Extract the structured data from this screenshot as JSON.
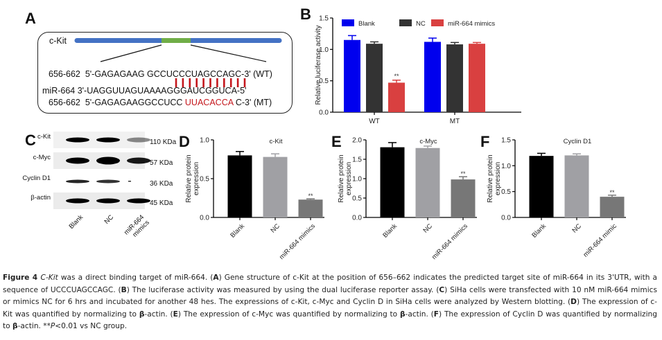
{
  "panels": {
    "A": {
      "letter": "A",
      "gene_label": "c-Kit",
      "wt_line": {
        "pos": "656-662",
        "seq_prefix": "5'-GAGAGAAG GCCUCCCUAGCCAGC-3' (WT)"
      },
      "mir_line": "miR-664 3'-UAGGUUAGUAAAAGGGAUCGGUCA-5'",
      "mt_line": {
        "pos": "656-662",
        "seq_prefix": "5'-GAGAGAAGGCCUCC ",
        "seq_mut": "UUACACCA",
        "seq_suffix": " C-3' (MT)"
      },
      "pairing_bars": 11,
      "colors": {
        "gene_bar": "#4472c4",
        "target_region": "#70ad47",
        "pairing": "#c4161c"
      }
    },
    "B": {
      "letter": "B"
    },
    "C": {
      "letter": "C",
      "rows": [
        {
          "label": "c-Kit",
          "size": "110 KDa"
        },
        {
          "label": "c-Myc",
          "size": "57 KDa"
        },
        {
          "label": "Cyclin D1",
          "size": "36 KDa"
        },
        {
          "label": "β-actin",
          "size": "45 KDa"
        }
      ],
      "lanes": [
        "Blank",
        "NC",
        "miR-664\nmimics"
      ]
    },
    "D": {
      "letter": "D"
    },
    "E": {
      "letter": "E"
    },
    "F": {
      "letter": "F"
    }
  },
  "chart_data": [
    {
      "id": "B",
      "type": "bar",
      "title": "",
      "xlabel": "",
      "ylabel": "Relative luciferase activity",
      "categories": [
        "WT",
        "MT"
      ],
      "ylim": [
        0,
        1.5
      ],
      "yticks": [
        "0.0",
        "0.5",
        "1.0",
        "1.5"
      ],
      "legend": "top",
      "series": [
        {
          "name": "Blank",
          "color": "#0000ee",
          "values": [
            1.15,
            1.12
          ],
          "errors": [
            0.07,
            0.06
          ]
        },
        {
          "name": "NC",
          "color": "#333333",
          "values": [
            1.09,
            1.08
          ],
          "errors": [
            0.03,
            0.03
          ]
        },
        {
          "name": "miR-664 mimics",
          "color": "#d94040",
          "values": [
            0.47,
            1.09
          ],
          "errors": [
            0.04,
            0.02
          ]
        }
      ],
      "annotations": [
        {
          "category": "WT",
          "series": "miR-664 mimics",
          "text": "**"
        }
      ]
    },
    {
      "id": "D",
      "type": "bar",
      "title": "c-Kit",
      "ylabel": "Relative protein\nexpression",
      "categories": [
        "Blank",
        "NC",
        "miR-664 mimics"
      ],
      "values": [
        0.8,
        0.78,
        0.23
      ],
      "errors": [
        0.05,
        0.04,
        0.01
      ],
      "colors": [
        "#000000",
        "#a0a0a4",
        "#777777"
      ],
      "ylim": [
        0,
        1.0
      ],
      "yticks": [
        "0.0",
        "0.5",
        "1.0"
      ],
      "annotations": [
        {
          "category": "miR-664 mimics",
          "text": "**"
        }
      ]
    },
    {
      "id": "E",
      "type": "bar",
      "title": "c-Myc",
      "ylabel": "Relative protein\nexpression",
      "categories": [
        "Blank",
        "NC",
        "miR-664 mimics"
      ],
      "values": [
        1.81,
        1.79,
        0.98
      ],
      "errors": [
        0.12,
        0.05,
        0.07
      ],
      "colors": [
        "#000000",
        "#a0a0a4",
        "#777777"
      ],
      "ylim": [
        0,
        2.0
      ],
      "yticks": [
        "0.0",
        "0.5",
        "1.0",
        "1.5",
        "2.0"
      ],
      "annotations": [
        {
          "category": "miR-664 mimics",
          "text": "**"
        }
      ]
    },
    {
      "id": "F",
      "type": "bar",
      "title": "Cyclin D1",
      "ylabel": "Relative protein\nexpression",
      "categories": [
        "Blank",
        "NC",
        "miR-664 mimic"
      ],
      "values": [
        1.19,
        1.2,
        0.4
      ],
      "errors": [
        0.05,
        0.03,
        0.03
      ],
      "colors": [
        "#000000",
        "#a0a0a4",
        "#777777"
      ],
      "ylim": [
        0,
        1.5
      ],
      "yticks": [
        "0.0",
        "0.5",
        "1.0",
        "1.5"
      ],
      "annotations": [
        {
          "category": "miR-664 mimic",
          "text": "**"
        }
      ]
    }
  ],
  "caption": {
    "figure_label": "Figure 4",
    "italic_gene": "C-Kit",
    "lead": " was a direct binding target of miR-664. (",
    "parts": [
      {
        "letter": "A",
        "text": ") Gene structure of c-Kit at the position of 656–662 indicates the predicted target site of miR-664 in its 3'UTR, with a sequence of UCCCUAGCCAGC. ("
      },
      {
        "letter": "B",
        "text": ") The luciferase activity was measured by using the dual luciferase reporter assay. ("
      },
      {
        "letter": "C",
        "text": ") SiHa cells were transfected with 10 nM miR-664 mimics or mimics NC for 6 hrs and incubated for another 48 hes. The expressions of c-Kit, c-Myc and Cyclin D in SiHa cells were analyzed by Western blotting. ("
      },
      {
        "letter": "D",
        "text": ") The expression of c-Kit was quantified by normalizing to "
      },
      {
        "beta": "β",
        "text": "-actin. ("
      },
      {
        "letter": "E",
        "text": ") The expression of c-Myc was quantified by normalizing to "
      },
      {
        "beta": "β",
        "text": "-actin. ("
      },
      {
        "letter": "F",
        "text": ") The expression of Cyclin D was quantified by normalizing to "
      },
      {
        "beta": "β",
        "text": "-actin. **"
      },
      {
        "italic": "P",
        "text": "<0.01 vs NC group."
      }
    ]
  }
}
